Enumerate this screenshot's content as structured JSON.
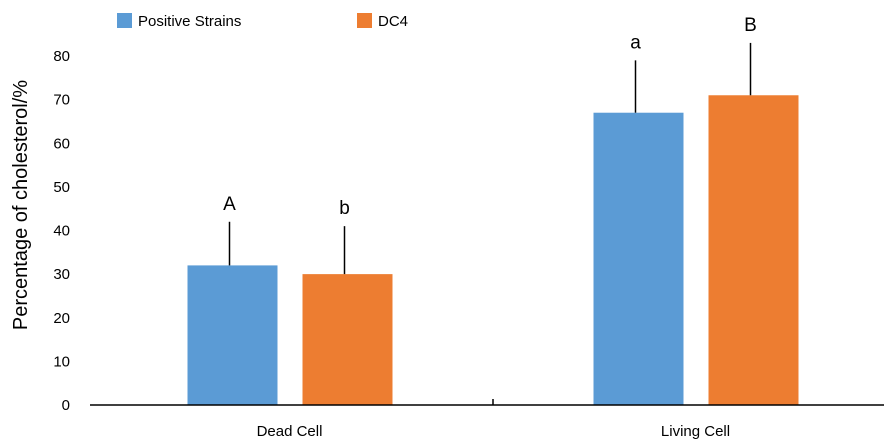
{
  "chart_data": {
    "type": "bar",
    "categories": [
      "Dead Cell",
      "Living Cell"
    ],
    "series": [
      {
        "name": "Positive Strains",
        "color": "#5b9bd5",
        "values": [
          32,
          67
        ],
        "error": [
          10,
          12
        ],
        "labels": [
          "A",
          "a"
        ]
      },
      {
        "name": "DC4",
        "color": "#ed7d31",
        "values": [
          30,
          71
        ],
        "error": [
          11,
          12
        ],
        "labels": [
          "b",
          "B"
        ]
      }
    ],
    "ylabel": "Percentage of cholesterol/%",
    "xlabel": "",
    "ylim": [
      0,
      80
    ],
    "yticks": [
      "0",
      "10",
      "20",
      "30",
      "40",
      "50",
      "60",
      "70",
      "80"
    ],
    "grid": false,
    "legend_position": "top-left"
  }
}
